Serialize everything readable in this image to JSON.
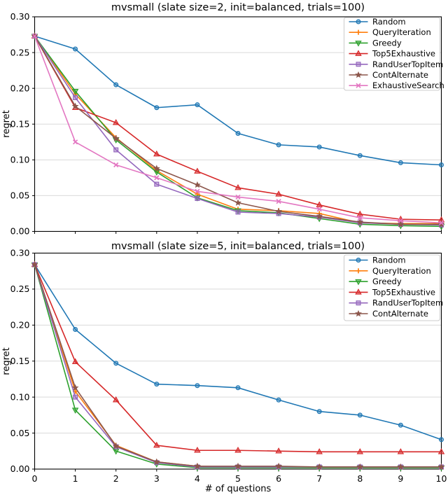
{
  "figure": {
    "background": "#ffffff",
    "grid_color": "#d9d9d9",
    "spine_color": "#000000",
    "legend_border_color": "#cccccc",
    "ytick_labels": [
      "0.00",
      "0.05",
      "0.10",
      "0.15",
      "0.20",
      "0.25",
      "0.30"
    ],
    "xtick_labels": [
      "0",
      "1",
      "2",
      "3",
      "4",
      "5",
      "6",
      "7",
      "8",
      "9",
      "10"
    ]
  },
  "chart_data": [
    {
      "type": "line",
      "title": "mvsmall (slate size=2, init=balanced, trials=100)",
      "ylabel": "regret",
      "xlabel": "",
      "x": [
        0,
        1,
        2,
        3,
        4,
        5,
        6,
        7,
        8,
        9,
        10
      ],
      "xlim": [
        0,
        10
      ],
      "ylim": [
        0,
        0.3
      ],
      "yticks": [
        0,
        0.05,
        0.1,
        0.15,
        0.2,
        0.25,
        0.3
      ],
      "grid": true,
      "legend_position": "upper right",
      "series": [
        {
          "name": "Random",
          "color": "#1f77b4",
          "marker": "circle",
          "values": [
            0.273,
            0.255,
            0.205,
            0.173,
            0.177,
            0.137,
            0.121,
            0.118,
            0.106,
            0.096,
            0.093
          ]
        },
        {
          "name": "QueryIteration",
          "color": "#ff7f0e",
          "marker": "plus",
          "values": [
            0.273,
            0.192,
            0.131,
            0.085,
            0.052,
            0.031,
            0.029,
            0.025,
            0.012,
            0.011,
            0.011
          ]
        },
        {
          "name": "Greedy",
          "color": "#2ca02c",
          "marker": "triangle-down",
          "values": [
            0.273,
            0.196,
            0.128,
            0.083,
            0.047,
            0.029,
            0.026,
            0.018,
            0.01,
            0.008,
            0.007
          ]
        },
        {
          "name": "Top5Exhaustive",
          "color": "#d62728",
          "marker": "triangle-up",
          "values": [
            0.273,
            0.173,
            0.152,
            0.108,
            0.084,
            0.061,
            0.052,
            0.037,
            0.024,
            0.017,
            0.016
          ]
        },
        {
          "name": "RandUserTopItem",
          "color": "#9467bd",
          "marker": "square",
          "values": [
            0.273,
            0.187,
            0.114,
            0.066,
            0.046,
            0.027,
            0.025,
            0.02,
            0.012,
            0.01,
            0.009
          ]
        },
        {
          "name": "ContAlternate",
          "color": "#8c564b",
          "marker": "star",
          "values": [
            0.273,
            0.175,
            0.13,
            0.088,
            0.065,
            0.04,
            0.028,
            0.021,
            0.013,
            0.01,
            0.01
          ]
        },
        {
          "name": "ExhaustiveSearch",
          "color": "#e377c2",
          "marker": "x",
          "values": [
            0.273,
            0.125,
            0.093,
            0.075,
            0.056,
            0.048,
            0.042,
            0.031,
            0.019,
            0.015,
            0.012
          ]
        }
      ]
    },
    {
      "type": "line",
      "title": "mvsmall (slate size=5, init=balanced, trials=100)",
      "ylabel": "regret",
      "xlabel": "# of questions",
      "x": [
        0,
        1,
        2,
        3,
        4,
        5,
        6,
        7,
        8,
        9,
        10
      ],
      "xlim": [
        0,
        10
      ],
      "ylim": [
        0,
        0.3
      ],
      "yticks": [
        0,
        0.05,
        0.1,
        0.15,
        0.2,
        0.25,
        0.3
      ],
      "grid": true,
      "legend_position": "upper right",
      "series": [
        {
          "name": "Random",
          "color": "#1f77b4",
          "marker": "circle",
          "values": [
            0.284,
            0.194,
            0.147,
            0.118,
            0.116,
            0.113,
            0.096,
            0.08,
            0.075,
            0.061,
            0.041
          ]
        },
        {
          "name": "QueryIteration",
          "color": "#ff7f0e",
          "marker": "plus",
          "values": [
            0.284,
            0.108,
            0.033,
            0.01,
            0.004,
            0.003,
            0.003,
            0.003,
            0.003,
            0.003,
            0.003
          ]
        },
        {
          "name": "Greedy",
          "color": "#2ca02c",
          "marker": "triangle-down",
          "values": [
            0.284,
            0.082,
            0.025,
            0.007,
            0.002,
            0.002,
            0.002,
            0.002,
            0.002,
            0.002,
            0.002
          ]
        },
        {
          "name": "Top5Exhaustive",
          "color": "#d62728",
          "marker": "triangle-up",
          "values": [
            0.284,
            0.149,
            0.096,
            0.033,
            0.026,
            0.026,
            0.025,
            0.024,
            0.024,
            0.024,
            0.024
          ]
        },
        {
          "name": "RandUserTopItem",
          "color": "#9467bd",
          "marker": "square",
          "values": [
            0.284,
            0.1,
            0.031,
            0.009,
            0.003,
            0.003,
            0.003,
            0.003,
            0.003,
            0.003,
            0.003
          ]
        },
        {
          "name": "ContAlternate",
          "color": "#8c564b",
          "marker": "star",
          "values": [
            0.284,
            0.113,
            0.032,
            0.01,
            0.004,
            0.004,
            0.004,
            0.003,
            0.003,
            0.003,
            0.003
          ]
        }
      ]
    }
  ]
}
